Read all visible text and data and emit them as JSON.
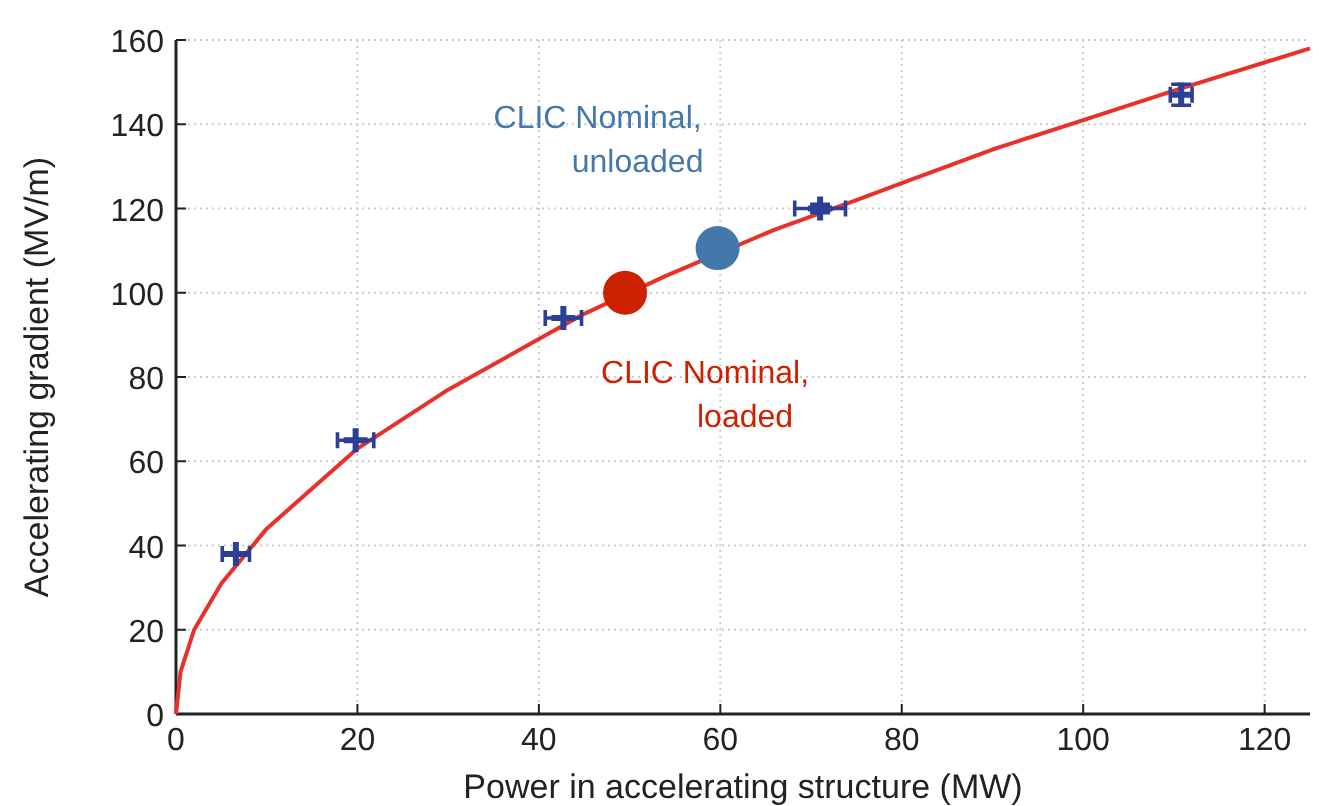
{
  "chart_data": {
    "type": "scatter",
    "xlabel": "Power in accelerating structure (MW)",
    "ylabel": "Accelerating gradient (MV/m)",
    "xlim": [
      0,
      125
    ],
    "ylim": [
      0,
      160
    ],
    "xticks": [
      0,
      20,
      40,
      60,
      80,
      100,
      120
    ],
    "yticks": [
      0,
      20,
      40,
      60,
      80,
      100,
      120,
      140,
      160
    ],
    "grid": true,
    "series": [
      {
        "type": "line",
        "color": "#e8312a",
        "marker": "none",
        "line_style": "solid",
        "x": [
          0,
          0.5,
          2,
          5,
          10,
          20,
          30,
          40,
          45,
          54,
          66,
          75,
          80,
          90,
          100,
          110,
          125
        ],
        "values": [
          0,
          10,
          20,
          31,
          44,
          63,
          77,
          89,
          95,
          104,
          115,
          122,
          126,
          134,
          141,
          148,
          158
        ]
      },
      {
        "type": "scatter",
        "color": "#2b3f96",
        "marker": "cross",
        "x": [
          6.6,
          19.8,
          42.7,
          71,
          110.8
        ],
        "values": [
          38,
          65,
          94,
          120,
          147
        ],
        "xerrors": [
          1.5,
          2,
          2,
          2.8,
          1.2
        ],
        "errors": [
          null,
          null,
          null,
          1,
          2.5
        ]
      },
      {
        "type": "scatter",
        "color": "#cc2200",
        "marker": "circle",
        "x": [
          49.5
        ],
        "values": [
          100
        ]
      },
      {
        "type": "scatter",
        "color": "#4477aa",
        "marker": "circle",
        "x": [
          59.7
        ],
        "values": [
          110.6
        ]
      }
    ],
    "annotations": [
      {
        "text": "CLIC Nominal,\nunloaded",
        "x": 59.7,
        "y": 110.6
      },
      {
        "text": "CLIC Nominal,\nloaded",
        "x": 49.5,
        "y": 100
      }
    ]
  }
}
